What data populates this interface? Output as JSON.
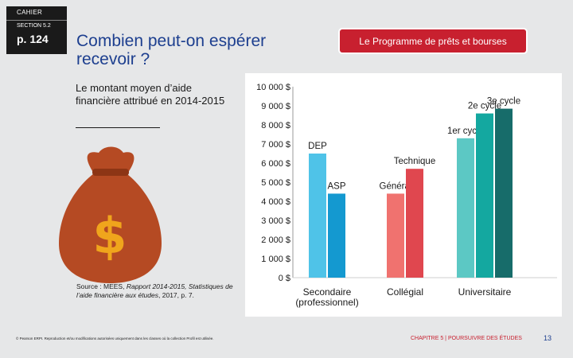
{
  "header": {
    "cahier": "CAHIER",
    "section": "SECTION 5.2",
    "page": "p. 124"
  },
  "title": "Combien peut-on espérer recevoir ?",
  "program_button": "Le Programme de prêts et bourses",
  "subtitle": "Le montant moyen d’aide financière attribué en 2014-2015",
  "source": {
    "prefix": "Source : MEES, ",
    "italic": "Rapport 2014-2015, Statistiques de l’aide financière aux études",
    "suffix": ", 2017, p. 7."
  },
  "footer": {
    "copyright": "© Pearson ERPI. Reproduction et/ou modifications autorisées uniquement dans les classes où la collection Profil est utilisée.",
    "chapter": "CHAPITRE 5 | POURSUIVRE DES ÉTUDES",
    "page_number": "13"
  },
  "illustration": {
    "symbol": "$",
    "icon": "money-bag-icon"
  },
  "colors": {
    "title": "#1d3f8f",
    "accent": "#c8202f",
    "background": "#e6e7e8",
    "bag": "#b54a23",
    "dollar": "#f0a51c"
  },
  "chart_data": {
    "type": "bar",
    "title": "",
    "ylim": [
      0,
      10000
    ],
    "yticks": [
      0,
      1000,
      2000,
      3000,
      4000,
      5000,
      6000,
      7000,
      8000,
      9000,
      10000
    ],
    "ytick_labels": [
      "0 $",
      "1 000 $",
      "2 000 $",
      "3 000 $",
      "4 000 $",
      "5 000 $",
      "6 000 $",
      "7 000 $",
      "8 000 $",
      "9 000 $",
      "10 000 $"
    ],
    "groups": [
      {
        "name": "Secondaire\n(professionnel)",
        "bars": [
          {
            "label": "DEP",
            "value": 6500,
            "color": "#4fc3e8"
          },
          {
            "label": "ASP",
            "value": 4400,
            "color": "#1499d0"
          }
        ]
      },
      {
        "name": "Collégial",
        "bars": [
          {
            "label": "Général",
            "value": 4400,
            "color": "#f0726f"
          },
          {
            "label": "Technique",
            "value": 5700,
            "color": "#e0474f"
          }
        ]
      },
      {
        "name": "Universitaire",
        "bars": [
          {
            "label": "1er cycle",
            "value": 7300,
            "color": "#5cc8c4"
          },
          {
            "label": "2e cycle",
            "value": 8600,
            "color": "#14a8a0"
          },
          {
            "label": "3e cycle",
            "value": 8850,
            "color": "#176c6a"
          }
        ]
      }
    ]
  }
}
